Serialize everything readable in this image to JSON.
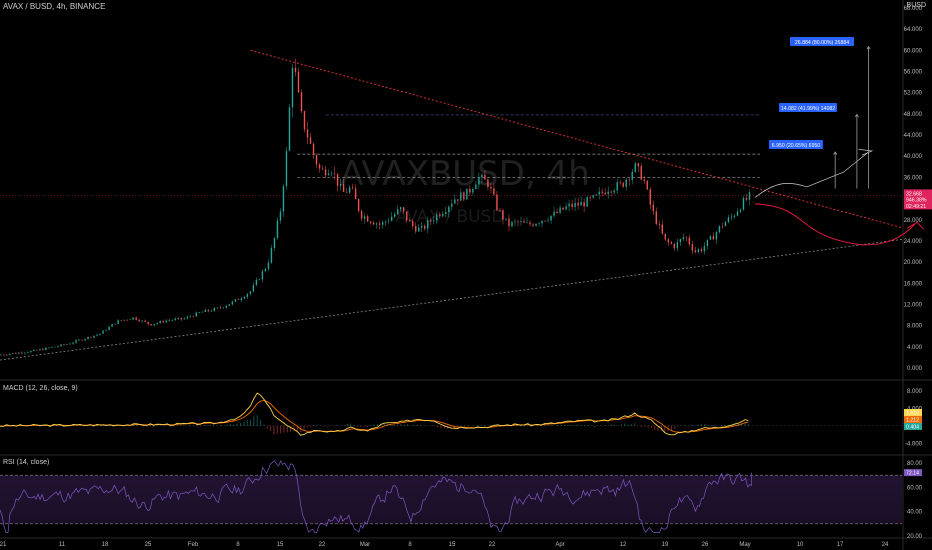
{
  "header": {
    "symbol_line": "AVAX / BUSD, 4h, BINANCE",
    "currency": "BUSD"
  },
  "watermark": {
    "main": "AVAXBUSD, 4h",
    "sub": "AVAX / BUSD"
  },
  "panes": {
    "macd_label": "MACD (12, 26, close, 9)",
    "rsi_label": "RSI (14, close)"
  },
  "price_axis": {
    "ticks": [
      "68.000",
      "64.000",
      "60.000",
      "56.000",
      "52.000",
      "48.000",
      "44.000",
      "40.000",
      "36.000",
      "32.000",
      "28.000",
      "24.000",
      "20.000",
      "16.000",
      "12.000",
      "8.000",
      "4.000",
      "0.000"
    ]
  },
  "price_tags": {
    "last": {
      "lines": [
        "32.668",
        "946.38%",
        "02:49:21"
      ],
      "color": "#e0245e"
    }
  },
  "macd_axis": {
    "ticks": [
      "8.000",
      "4.000",
      "-4.000"
    ],
    "tags": [
      {
        "text": "1.616",
        "color": "#ffd54f",
        "tcolor": "#000"
      },
      {
        "text": "1.212",
        "color": "#ef6c00",
        "tcolor": "#fff"
      },
      {
        "text": "0.404",
        "color": "#26a69a",
        "tcolor": "#fff"
      }
    ]
  },
  "rsi_axis": {
    "ticks": [
      "80.00",
      "60.00",
      "40.00",
      "20.00"
    ],
    "tag": {
      "text": "72.14",
      "color": "#7e57c2"
    }
  },
  "time_axis": {
    "labels": [
      "21",
      "11",
      "18",
      "25",
      "Feb",
      "8",
      "15",
      "22",
      "Mar",
      "8",
      "15",
      "22",
      "Apr",
      "12",
      "19",
      "26",
      "May",
      "10",
      "17",
      "24"
    ]
  },
  "measures": [
    {
      "text": "26.884 (80.00%) 26884",
      "color": "#2962ff"
    },
    {
      "text": "14.082 (41.99%) 14082",
      "color": "#2962ff"
    },
    {
      "text": "6.950 (20.65%) 6950",
      "color": "#2962ff"
    }
  ],
  "colors": {
    "candle_up": "#26a69a",
    "candle_down": "#ef5350",
    "macd_line": "#ffd54f",
    "signal_line": "#ef6c00",
    "rsi_line": "#7e57c2",
    "resistance": "#e53935",
    "support": "#7a7a7a",
    "annotation_arrow": "#ff1744"
  },
  "chart_data": {
    "type": "candlestick",
    "title": "AVAX / BUSD, 4h, BINANCE",
    "ylim": [
      0,
      68
    ],
    "price_path": [
      [
        0,
        2.5
      ],
      [
        2,
        3.2
      ],
      [
        4,
        4.5
      ],
      [
        6,
        6.5
      ],
      [
        7,
        8.8
      ],
      [
        8,
        9.5
      ],
      [
        9,
        8.2
      ],
      [
        10,
        9.0
      ],
      [
        11,
        9.3
      ],
      [
        12,
        10.5
      ],
      [
        13,
        11.2
      ],
      [
        14,
        12.5
      ],
      [
        15,
        14.5
      ],
      [
        15.5,
        17
      ],
      [
        16,
        19.5
      ],
      [
        16.4,
        24
      ],
      [
        16.8,
        30
      ],
      [
        17.2,
        42
      ],
      [
        17.5,
        58
      ],
      [
        17.7,
        55
      ],
      [
        18,
        48
      ],
      [
        18.4,
        44
      ],
      [
        18.8,
        40
      ],
      [
        19.2,
        37
      ],
      [
        19.8,
        38
      ],
      [
        20.5,
        33
      ],
      [
        21,
        34
      ],
      [
        21.6,
        29
      ],
      [
        22.2,
        28
      ],
      [
        22.8,
        27
      ],
      [
        23.4,
        28.5
      ],
      [
        24,
        30
      ],
      [
        24.6,
        27
      ],
      [
        25.2,
        26
      ],
      [
        26,
        28.5
      ],
      [
        26.6,
        30
      ],
      [
        27.2,
        32
      ],
      [
        28,
        33
      ],
      [
        28.6,
        36
      ],
      [
        29.2,
        35
      ],
      [
        29.8,
        30
      ],
      [
        30.4,
        27
      ],
      [
        31,
        27.5
      ],
      [
        31.6,
        27
      ],
      [
        32.4,
        28
      ],
      [
        33.2,
        29
      ],
      [
        34,
        30.5
      ],
      [
        34.8,
        31
      ],
      [
        35.6,
        32
      ],
      [
        36.4,
        34
      ],
      [
        37.2,
        34.5
      ],
      [
        38,
        38
      ],
      [
        38.5,
        36
      ],
      [
        39,
        30
      ],
      [
        39.4,
        27
      ],
      [
        39.8,
        24
      ],
      [
        40.4,
        23
      ],
      [
        41,
        25
      ],
      [
        41.6,
        22
      ],
      [
        42,
        22.5
      ],
      [
        42.6,
        24.5
      ],
      [
        43.2,
        27
      ],
      [
        43.8,
        28.5
      ],
      [
        44.4,
        31
      ],
      [
        45,
        32.7
      ]
    ],
    "x_range": [
      0,
      54
    ],
    "resistance_line": {
      "from": [
        15,
        60
      ],
      "to": [
        54,
        26.5
      ]
    },
    "support_line": {
      "from": [
        0,
        1.5
      ],
      "to": [
        54,
        24.3
      ]
    },
    "horizontal_levels": [
      47.8,
      40.4,
      36.0
    ],
    "macd": {
      "ylim": [
        -6,
        10
      ],
      "path": [
        [
          0,
          0
        ],
        [
          10,
          0.3
        ],
        [
          13,
          0.6
        ],
        [
          14.4,
          2
        ],
        [
          15,
          4.5
        ],
        [
          15.4,
          7.6
        ],
        [
          15.8,
          6
        ],
        [
          16.4,
          2.5
        ],
        [
          17,
          0.5
        ],
        [
          18,
          -2
        ],
        [
          19,
          -1
        ],
        [
          20,
          -1.5
        ],
        [
          21,
          -0.5
        ],
        [
          22,
          -1.2
        ],
        [
          23,
          0.5
        ],
        [
          24,
          0.8
        ],
        [
          25,
          1.5
        ],
        [
          26,
          1.2
        ],
        [
          27,
          -0.5
        ],
        [
          28,
          -0.3
        ],
        [
          29,
          -0.3
        ],
        [
          30,
          0.1
        ],
        [
          31,
          0.3
        ],
        [
          32,
          0.2
        ],
        [
          33,
          0.5
        ],
        [
          34,
          0.9
        ],
        [
          35,
          1.2
        ],
        [
          36,
          1.0
        ],
        [
          37,
          1.6
        ],
        [
          38,
          2.8
        ],
        [
          39,
          1.2
        ],
        [
          40,
          -2
        ],
        [
          41,
          -1.5
        ],
        [
          42,
          -0.6
        ],
        [
          43,
          -0.4
        ],
        [
          44,
          0.5
        ],
        [
          45,
          1.6
        ]
      ]
    },
    "rsi": {
      "ylim": [
        20,
        85
      ],
      "overbought": 70,
      "oversold": 30,
      "last": 72.14
    }
  }
}
